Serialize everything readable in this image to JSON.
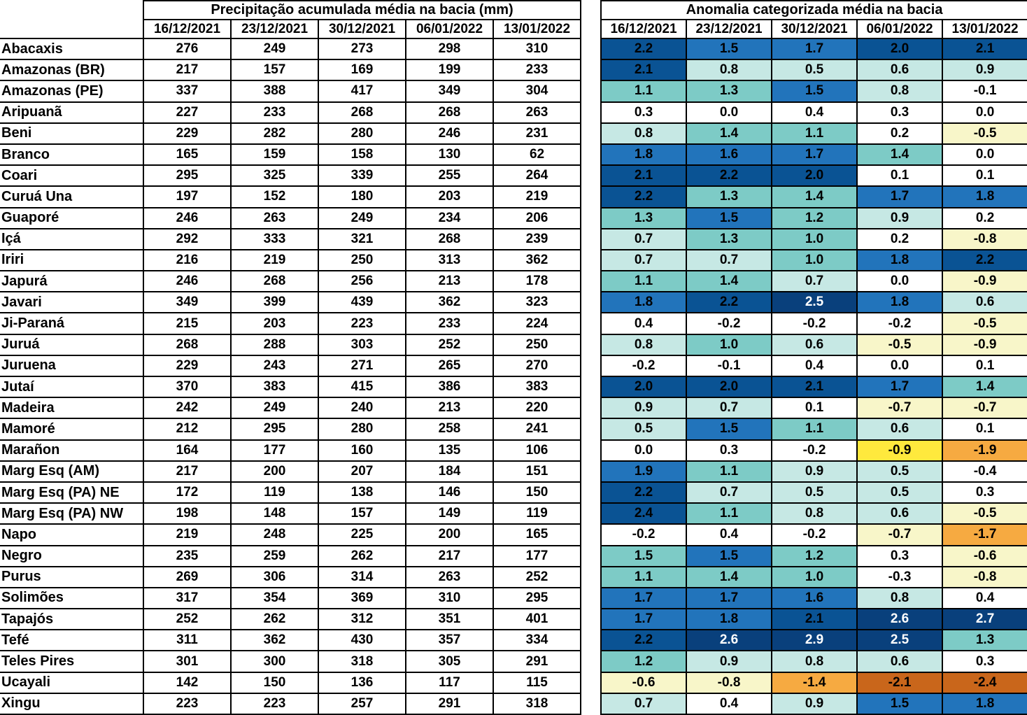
{
  "chart_data": {
    "type": "heatmap",
    "title_left": "Precipitação acumulada média na bacia (mm)",
    "title_right": "Anomalia categorizada média na bacia",
    "columns": [
      "16/12/2021",
      "23/12/2021",
      "30/12/2021",
      "06/01/2022",
      "13/01/2022"
    ],
    "unit_left": "mm",
    "legend_note": "cell color = anomaly category (blue wet, white neutral, yellow/orange dry)",
    "rows": [
      {
        "basin": "Abacaxis",
        "precip": [
          276,
          249,
          273,
          298,
          310
        ],
        "anomaly": [
          "2.2",
          "1.5",
          "1.7",
          "2.0",
          "2.1"
        ],
        "cat": [
          "p20",
          "p15",
          "p15",
          "p20",
          "p20"
        ]
      },
      {
        "basin": "Amazonas (BR)",
        "precip": [
          217,
          157,
          169,
          199,
          233
        ],
        "anomaly": [
          "2.1",
          "0.8",
          "0.5",
          "0.6",
          "0.9"
        ],
        "cat": [
          "p20",
          "p05",
          "p05",
          "p05",
          "p05"
        ]
      },
      {
        "basin": "Amazonas (PE)",
        "precip": [
          337,
          388,
          417,
          349,
          304
        ],
        "anomaly": [
          "1.1",
          "1.3",
          "1.5",
          "0.8",
          "-0.1"
        ],
        "cat": [
          "p10",
          "p10",
          "p15",
          "p05",
          "zero"
        ]
      },
      {
        "basin": "Aripuanã",
        "precip": [
          227,
          233,
          268,
          268,
          263
        ],
        "anomaly": [
          "0.3",
          "0.0",
          "0.4",
          "0.3",
          "0.0"
        ],
        "cat": [
          "zero",
          "zero",
          "zero",
          "zero",
          "zero"
        ]
      },
      {
        "basin": "Beni",
        "precip": [
          229,
          282,
          280,
          246,
          231
        ],
        "anomaly": [
          "0.8",
          "1.4",
          "1.1",
          "0.2",
          "-0.5"
        ],
        "cat": [
          "p05",
          "p10",
          "p10",
          "zero",
          "n05"
        ]
      },
      {
        "basin": "Branco",
        "precip": [
          165,
          159,
          158,
          130,
          62
        ],
        "anomaly": [
          "1.8",
          "1.6",
          "1.7",
          "1.4",
          "0.0"
        ],
        "cat": [
          "p15",
          "p15",
          "p15",
          "p10",
          "zero"
        ]
      },
      {
        "basin": "Coari",
        "precip": [
          295,
          325,
          339,
          255,
          264
        ],
        "anomaly": [
          "2.1",
          "2.2",
          "2.0",
          "0.1",
          "0.1"
        ],
        "cat": [
          "p20",
          "p20",
          "p20",
          "zero",
          "zero"
        ]
      },
      {
        "basin": "Curuá Una",
        "precip": [
          197,
          152,
          180,
          203,
          219
        ],
        "anomaly": [
          "2.2",
          "1.3",
          "1.4",
          "1.7",
          "1.8"
        ],
        "cat": [
          "p20",
          "p10",
          "p10",
          "p15",
          "p15"
        ]
      },
      {
        "basin": "Guaporé",
        "precip": [
          246,
          263,
          249,
          234,
          206
        ],
        "anomaly": [
          "1.3",
          "1.5",
          "1.2",
          "0.9",
          "0.2"
        ],
        "cat": [
          "p10",
          "p15",
          "p10",
          "p05",
          "zero"
        ]
      },
      {
        "basin": "Içá",
        "precip": [
          292,
          333,
          321,
          268,
          239
        ],
        "anomaly": [
          "0.7",
          "1.3",
          "1.0",
          "0.2",
          "-0.8"
        ],
        "cat": [
          "p05",
          "p10",
          "p10",
          "zero",
          "n05"
        ]
      },
      {
        "basin": "Iriri",
        "precip": [
          216,
          219,
          250,
          313,
          362
        ],
        "anomaly": [
          "0.7",
          "0.7",
          "1.0",
          "1.8",
          "2.2"
        ],
        "cat": [
          "p05",
          "p05",
          "p10",
          "p15",
          "p20"
        ]
      },
      {
        "basin": "Japurá",
        "precip": [
          246,
          268,
          256,
          213,
          178
        ],
        "anomaly": [
          "1.1",
          "1.4",
          "0.7",
          "0.0",
          "-0.9"
        ],
        "cat": [
          "p10",
          "p10",
          "p05",
          "zero",
          "n05"
        ]
      },
      {
        "basin": "Javari",
        "precip": [
          349,
          399,
          439,
          362,
          323
        ],
        "anomaly": [
          "1.8",
          "2.2",
          "2.5",
          "1.8",
          "0.6"
        ],
        "cat": [
          "p15",
          "p20",
          "p25",
          "p15",
          "p05"
        ]
      },
      {
        "basin": "Ji-Paraná",
        "precip": [
          215,
          203,
          223,
          233,
          224
        ],
        "anomaly": [
          "0.4",
          "-0.2",
          "-0.2",
          "-0.2",
          "-0.5"
        ],
        "cat": [
          "zero",
          "zero",
          "zero",
          "zero",
          "n05"
        ]
      },
      {
        "basin": "Juruá",
        "precip": [
          268,
          288,
          303,
          252,
          250
        ],
        "anomaly": [
          "0.8",
          "1.0",
          "0.6",
          "-0.5",
          "-0.9"
        ],
        "cat": [
          "p05",
          "p10",
          "p05",
          "n05",
          "n05"
        ]
      },
      {
        "basin": "Juruena",
        "precip": [
          229,
          243,
          271,
          265,
          270
        ],
        "anomaly": [
          "-0.2",
          "-0.1",
          "0.4",
          "0.0",
          "0.1"
        ],
        "cat": [
          "zero",
          "zero",
          "zero",
          "zero",
          "zero"
        ]
      },
      {
        "basin": "Jutaí",
        "precip": [
          370,
          383,
          415,
          386,
          383
        ],
        "anomaly": [
          "2.0",
          "2.0",
          "2.1",
          "1.7",
          "1.4"
        ],
        "cat": [
          "p20",
          "p20",
          "p20",
          "p15",
          "p10"
        ]
      },
      {
        "basin": "Madeira",
        "precip": [
          242,
          249,
          240,
          213,
          220
        ],
        "anomaly": [
          "0.9",
          "0.7",
          "0.1",
          "-0.7",
          "-0.7"
        ],
        "cat": [
          "p05",
          "p05",
          "zero",
          "n05",
          "n05"
        ]
      },
      {
        "basin": "Mamoré",
        "precip": [
          212,
          295,
          280,
          258,
          241
        ],
        "anomaly": [
          "0.5",
          "1.5",
          "1.1",
          "0.6",
          "0.1"
        ],
        "cat": [
          "p05",
          "p15",
          "p10",
          "p05",
          "zero"
        ]
      },
      {
        "basin": "Marañon",
        "precip": [
          164,
          177,
          160,
          135,
          106
        ],
        "anomaly": [
          "0.0",
          "0.3",
          "-0.2",
          "-0.9",
          "-1.9"
        ],
        "cat": [
          "zero",
          "zero",
          "zero",
          "n10",
          "n15"
        ]
      },
      {
        "basin": "Marg Esq (AM)",
        "precip": [
          217,
          200,
          207,
          184,
          151
        ],
        "anomaly": [
          "1.9",
          "1.1",
          "0.9",
          "0.5",
          "-0.4"
        ],
        "cat": [
          "p15",
          "p10",
          "p05",
          "p05",
          "zero"
        ]
      },
      {
        "basin": "Marg Esq (PA) NE",
        "precip": [
          172,
          119,
          138,
          146,
          150
        ],
        "anomaly": [
          "2.2",
          "0.7",
          "0.5",
          "0.5",
          "0.3"
        ],
        "cat": [
          "p20",
          "p05",
          "p05",
          "p05",
          "zero"
        ]
      },
      {
        "basin": "Marg Esq (PA) NW",
        "precip": [
          198,
          148,
          157,
          149,
          119
        ],
        "anomaly": [
          "2.4",
          "1.1",
          "0.8",
          "0.6",
          "-0.5"
        ],
        "cat": [
          "p20",
          "p10",
          "p05",
          "p05",
          "n05"
        ]
      },
      {
        "basin": "Napo",
        "precip": [
          219,
          248,
          225,
          200,
          165
        ],
        "anomaly": [
          "-0.2",
          "0.4",
          "-0.2",
          "-0.7",
          "-1.7"
        ],
        "cat": [
          "zero",
          "zero",
          "zero",
          "n05",
          "n15"
        ]
      },
      {
        "basin": "Negro",
        "precip": [
          235,
          259,
          262,
          217,
          177
        ],
        "anomaly": [
          "1.5",
          "1.5",
          "1.2",
          "0.3",
          "-0.6"
        ],
        "cat": [
          "p10",
          "p15",
          "p10",
          "zero",
          "n05"
        ]
      },
      {
        "basin": "Purus",
        "precip": [
          269,
          306,
          314,
          263,
          252
        ],
        "anomaly": [
          "1.1",
          "1.4",
          "1.0",
          "-0.3",
          "-0.8"
        ],
        "cat": [
          "p10",
          "p10",
          "p10",
          "zero",
          "n05"
        ]
      },
      {
        "basin": "Solimões",
        "precip": [
          317,
          354,
          369,
          310,
          295
        ],
        "anomaly": [
          "1.7",
          "1.7",
          "1.6",
          "0.8",
          "0.4"
        ],
        "cat": [
          "p15",
          "p15",
          "p15",
          "p05",
          "zero"
        ]
      },
      {
        "basin": "Tapajós",
        "precip": [
          252,
          262,
          312,
          351,
          401
        ],
        "anomaly": [
          "1.7",
          "1.8",
          "2.1",
          "2.6",
          "2.7"
        ],
        "cat": [
          "p15",
          "p15",
          "p20",
          "p25",
          "p25"
        ]
      },
      {
        "basin": "Tefé",
        "precip": [
          311,
          362,
          430,
          357,
          334
        ],
        "anomaly": [
          "2.2",
          "2.6",
          "2.9",
          "2.5",
          "1.3"
        ],
        "cat": [
          "p20",
          "p25",
          "p25",
          "p25",
          "p10"
        ]
      },
      {
        "basin": "Teles Pires",
        "precip": [
          301,
          300,
          318,
          305,
          291
        ],
        "anomaly": [
          "1.2",
          "0.9",
          "0.8",
          "0.6",
          "0.3"
        ],
        "cat": [
          "p10",
          "p05",
          "p05",
          "p05",
          "zero"
        ]
      },
      {
        "basin": "Ucayali",
        "precip": [
          142,
          150,
          136,
          117,
          115
        ],
        "anomaly": [
          "-0.6",
          "-0.8",
          "-1.4",
          "-2.1",
          "-2.4"
        ],
        "cat": [
          "n05",
          "n05",
          "n15",
          "n20",
          "n20"
        ]
      },
      {
        "basin": "Xingu",
        "precip": [
          223,
          223,
          257,
          291,
          318
        ],
        "anomaly": [
          "0.7",
          "0.4",
          "0.9",
          "1.5",
          "1.8"
        ],
        "cat": [
          "p05",
          "zero",
          "p05",
          "p15",
          "p15"
        ]
      }
    ]
  },
  "palette": {
    "p25": "#09407c",
    "p20": "#0a5394",
    "p15": "#2274bb",
    "p10": "#7dcbc6",
    "p05": "#c6e8e4",
    "zero": "#ffffff",
    "n05": "#f8f6c9",
    "n10": "#ffe93d",
    "n15": "#f6aa41",
    "n20": "#c9661b"
  },
  "palette_text": {
    "p25": "#ffffff"
  }
}
